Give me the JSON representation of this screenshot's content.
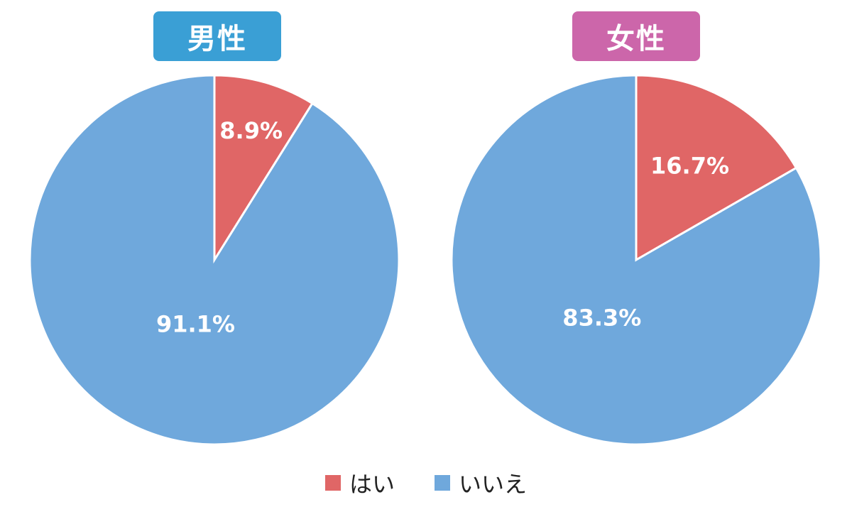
{
  "colors": {
    "yes": "#E06666",
    "no": "#6FA8DC",
    "male_badge": "#3A9FD5",
    "female_badge": "#CC66AA"
  },
  "legend": [
    {
      "label": "はい",
      "color": "#E06666"
    },
    {
      "label": "いいえ",
      "color": "#6FA8DC"
    }
  ],
  "chart_data": [
    {
      "type": "pie",
      "title": "男性",
      "categories": [
        "はい",
        "いいえ"
      ],
      "values": [
        8.9,
        91.1
      ],
      "labels": [
        "8.9%",
        "91.1%"
      ]
    },
    {
      "type": "pie",
      "title": "女性",
      "categories": [
        "はい",
        "いいえ"
      ],
      "values": [
        16.7,
        83.3
      ],
      "labels": [
        "16.7%",
        "83.3%"
      ]
    }
  ]
}
